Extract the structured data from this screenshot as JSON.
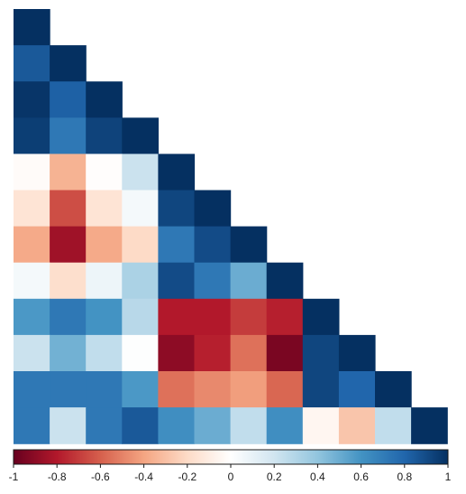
{
  "chart_data": {
    "type": "heatmap",
    "title": "",
    "xlabel": "",
    "ylabel": "",
    "shape": "lower-triangle",
    "rows": 12,
    "matrix": [
      [
        1
      ],
      [
        0.85,
        1
      ],
      [
        0.98,
        0.82,
        1
      ],
      [
        0.95,
        0.72,
        0.93,
        1
      ],
      [
        -0.02,
        -0.35,
        -0.01,
        0.22,
        1
      ],
      [
        -0.15,
        -0.65,
        -0.15,
        0.05,
        0.92,
        1
      ],
      [
        -0.38,
        -0.85,
        -0.38,
        -0.2,
        0.72,
        0.9,
        1
      ],
      [
        0.05,
        -0.18,
        0.08,
        0.32,
        0.9,
        0.72,
        0.5,
        1
      ],
      [
        0.58,
        0.72,
        0.6,
        0.28,
        -0.8,
        -0.8,
        -0.7,
        -0.78,
        1
      ],
      [
        0.22,
        0.48,
        0.25,
        0.01,
        -0.9,
        -0.78,
        -0.55,
        -0.95,
        0.92,
        1
      ],
      [
        0.72,
        0.72,
        0.72,
        0.58,
        -0.55,
        -0.48,
        -0.42,
        -0.58,
        0.92,
        0.8,
        1
      ],
      [
        0.72,
        0.22,
        0.72,
        0.85,
        0.62,
        0.5,
        0.25,
        0.62,
        -0.05,
        -0.28,
        0.25,
        1
      ]
    ],
    "colorbar": {
      "min": -1,
      "max": 1,
      "ticks": [
        "-1",
        "-0.8",
        "-0.6",
        "-0.4",
        "-0.2",
        "0",
        "0.2",
        "0.4",
        "0.6",
        "0.8",
        "1"
      ],
      "colors": [
        "#67001f",
        "#b2182b",
        "#d6604d",
        "#f4a582",
        "#fddbc7",
        "#ffffff",
        "#d1e5f0",
        "#92c5de",
        "#4393c3",
        "#2166ac",
        "#053061"
      ],
      "position": "bottom"
    },
    "grid": false,
    "legend": "none"
  }
}
